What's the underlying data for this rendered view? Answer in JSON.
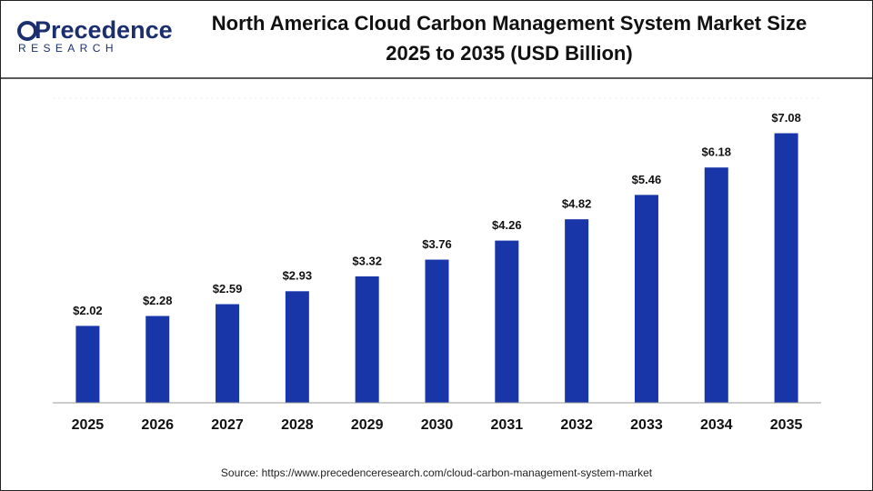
{
  "logo": {
    "name": "Precedence",
    "tagline": "RESEARCH"
  },
  "chart_data": {
    "type": "bar",
    "title": [
      "North America Cloud Carbon Management System Market Size",
      "2025 to 2035 (USD Billion)"
    ],
    "categories": [
      "2025",
      "2026",
      "2027",
      "2028",
      "2029",
      "2030",
      "2031",
      "2032",
      "2033",
      "2034",
      "2035"
    ],
    "values": [
      2.02,
      2.28,
      2.59,
      2.93,
      3.32,
      3.76,
      4.26,
      4.82,
      5.46,
      6.18,
      7.08
    ],
    "value_labels": [
      "$2.02",
      "$2.28",
      "$2.59",
      "$2.93",
      "$3.32",
      "$3.76",
      "$4.26",
      "$4.82",
      "$5.46",
      "$6.18",
      "$7.08"
    ],
    "color": "#1836a8",
    "ylim": [
      0,
      8
    ],
    "source": "Source: https://www.precedenceresearch.com/cloud-carbon-management-system-market"
  }
}
